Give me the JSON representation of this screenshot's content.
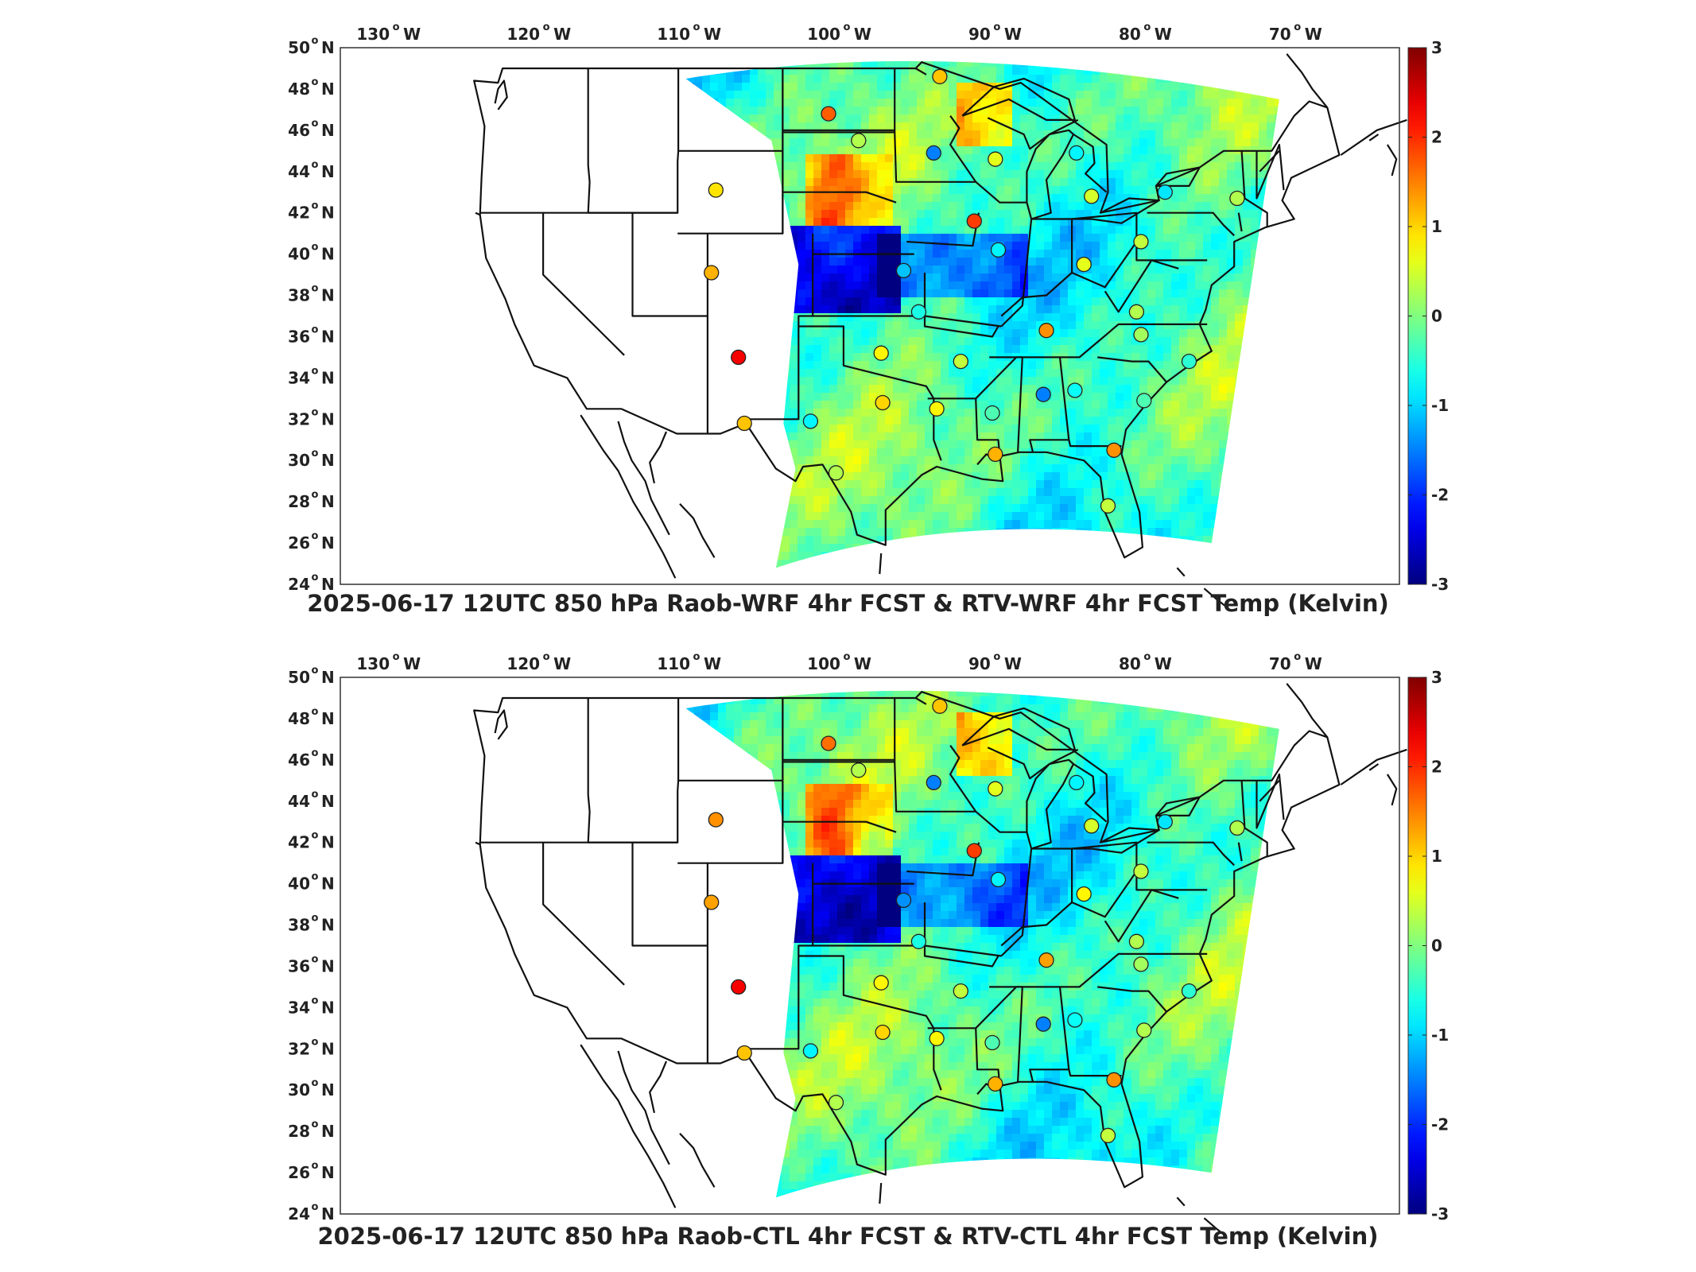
{
  "panels": [
    {
      "id": "top",
      "title": "2025-06-17 12UTC 850 hPa Raob-WRF 4hr FCST & RTV-WRF 4hr FCST Temp (Kelvin)",
      "stations": [
        {
          "lon": -93.6,
          "lat": 48.6,
          "v": 1.1
        },
        {
          "lon": -101.0,
          "lat": 46.8,
          "v": 1.7
        },
        {
          "lon": -99.0,
          "lat": 45.5,
          "v": 0.3
        },
        {
          "lon": -94.0,
          "lat": 44.9,
          "v": -1.5
        },
        {
          "lon": -108.5,
          "lat": 43.1,
          "v": 0.9
        },
        {
          "lon": -89.9,
          "lat": 44.6,
          "v": 0.6
        },
        {
          "lon": -84.5,
          "lat": 44.9,
          "v": -0.8
        },
        {
          "lon": -83.5,
          "lat": 42.8,
          "v": 0.5
        },
        {
          "lon": -78.6,
          "lat": 43.0,
          "v": -0.9
        },
        {
          "lon": -73.8,
          "lat": 42.7,
          "v": 0.3
        },
        {
          "lon": -91.3,
          "lat": 41.6,
          "v": 1.9
        },
        {
          "lon": -89.7,
          "lat": 40.2,
          "v": -0.8
        },
        {
          "lon": -96.0,
          "lat": 39.2,
          "v": -1.1
        },
        {
          "lon": -84.0,
          "lat": 39.5,
          "v": 0.6
        },
        {
          "lon": -80.2,
          "lat": 40.6,
          "v": 0.4
        },
        {
          "lon": -108.8,
          "lat": 39.1,
          "v": 1.2
        },
        {
          "lon": -95.0,
          "lat": 37.2,
          "v": -0.6
        },
        {
          "lon": -80.5,
          "lat": 37.2,
          "v": 0.3
        },
        {
          "lon": -86.5,
          "lat": 36.3,
          "v": 1.4
        },
        {
          "lon": -80.2,
          "lat": 36.1,
          "v": 0.2
        },
        {
          "lon": -97.5,
          "lat": 35.2,
          "v": 0.8
        },
        {
          "lon": -107.0,
          "lat": 35.0,
          "v": 2.3
        },
        {
          "lon": -92.2,
          "lat": 34.8,
          "v": 0.4
        },
        {
          "lon": -77.0,
          "lat": 34.8,
          "v": -0.5
        },
        {
          "lon": -86.7,
          "lat": 33.2,
          "v": -1.5
        },
        {
          "lon": -84.6,
          "lat": 33.4,
          "v": -0.7
        },
        {
          "lon": -97.4,
          "lat": 32.8,
          "v": 1.0
        },
        {
          "lon": -93.8,
          "lat": 32.5,
          "v": 0.8
        },
        {
          "lon": -90.1,
          "lat": 32.3,
          "v": -0.3
        },
        {
          "lon": -80.0,
          "lat": 32.9,
          "v": -0.3
        },
        {
          "lon": -106.6,
          "lat": 31.8,
          "v": 1.1
        },
        {
          "lon": -102.2,
          "lat": 31.9,
          "v": -0.8
        },
        {
          "lon": -89.9,
          "lat": 30.3,
          "v": 1.2
        },
        {
          "lon": -82.0,
          "lat": 30.5,
          "v": 1.4
        },
        {
          "lon": -100.5,
          "lat": 29.4,
          "v": 0.3
        },
        {
          "lon": -82.4,
          "lat": 27.8,
          "v": 0.4
        }
      ]
    },
    {
      "id": "bottom",
      "title": "2025-06-17 12UTC 850 hPa Raob-CTL 4hr FCST & RTV-CTL 4hr FCST Temp (Kelvin)",
      "stations": [
        {
          "lon": -93.6,
          "lat": 48.6,
          "v": 1.1
        },
        {
          "lon": -101.0,
          "lat": 46.8,
          "v": 1.6
        },
        {
          "lon": -99.0,
          "lat": 45.5,
          "v": 0.3
        },
        {
          "lon": -94.0,
          "lat": 44.9,
          "v": -1.5
        },
        {
          "lon": -108.5,
          "lat": 43.1,
          "v": 1.4
        },
        {
          "lon": -89.9,
          "lat": 44.6,
          "v": 0.6
        },
        {
          "lon": -84.5,
          "lat": 44.9,
          "v": -0.8
        },
        {
          "lon": -83.5,
          "lat": 42.8,
          "v": 0.5
        },
        {
          "lon": -78.6,
          "lat": 43.0,
          "v": -0.9
        },
        {
          "lon": -73.8,
          "lat": 42.7,
          "v": 0.3
        },
        {
          "lon": -91.3,
          "lat": 41.6,
          "v": 1.9
        },
        {
          "lon": -89.7,
          "lat": 40.2,
          "v": -0.8
        },
        {
          "lon": -96.0,
          "lat": 39.2,
          "v": -1.4
        },
        {
          "lon": -84.0,
          "lat": 39.5,
          "v": 0.8
        },
        {
          "lon": -80.2,
          "lat": 40.6,
          "v": 0.4
        },
        {
          "lon": -108.8,
          "lat": 39.1,
          "v": 1.3
        },
        {
          "lon": -95.0,
          "lat": 37.2,
          "v": -0.6
        },
        {
          "lon": -80.5,
          "lat": 37.2,
          "v": 0.3
        },
        {
          "lon": -86.5,
          "lat": 36.3,
          "v": 1.3
        },
        {
          "lon": -80.2,
          "lat": 36.1,
          "v": 0.2
        },
        {
          "lon": -97.5,
          "lat": 35.2,
          "v": 0.8
        },
        {
          "lon": -107.0,
          "lat": 35.0,
          "v": 2.3
        },
        {
          "lon": -92.2,
          "lat": 34.8,
          "v": 0.4
        },
        {
          "lon": -77.0,
          "lat": 34.8,
          "v": -0.5
        },
        {
          "lon": -86.7,
          "lat": 33.2,
          "v": -1.5
        },
        {
          "lon": -84.6,
          "lat": 33.4,
          "v": -0.7
        },
        {
          "lon": -97.4,
          "lat": 32.8,
          "v": 1.0
        },
        {
          "lon": -93.8,
          "lat": 32.5,
          "v": 0.8
        },
        {
          "lon": -90.1,
          "lat": 32.3,
          "v": -0.3
        },
        {
          "lon": -80.0,
          "lat": 32.9,
          "v": 0.3
        },
        {
          "lon": -106.6,
          "lat": 31.8,
          "v": 1.1
        },
        {
          "lon": -102.2,
          "lat": 31.9,
          "v": -0.8
        },
        {
          "lon": -89.9,
          "lat": 30.3,
          "v": 1.2
        },
        {
          "lon": -82.0,
          "lat": 30.5,
          "v": 1.4
        },
        {
          "lon": -100.5,
          "lat": 29.4,
          "v": 0.3
        },
        {
          "lon": -82.4,
          "lat": 27.8,
          "v": 0.4
        }
      ]
    }
  ],
  "lon_labels": [
    "130",
    "120",
    "110",
    "100",
    "90",
    "80",
    "70"
  ],
  "lon_values": [
    -130,
    -120,
    -110,
    -100,
    -90,
    -80,
    -70
  ],
  "lat_labels": [
    "50",
    "48",
    "46",
    "44",
    "42",
    "40",
    "38",
    "36",
    "34",
    "32",
    "30",
    "28",
    "26",
    "24"
  ],
  "lat_values": [
    50,
    48,
    46,
    44,
    42,
    40,
    38,
    36,
    34,
    32,
    30,
    28,
    26,
    24
  ],
  "lon_suffix": "W",
  "lat_suffix": "N",
  "colorbar": {
    "labels": [
      "3",
      "2",
      "1",
      "0",
      "-1",
      "-2",
      "-3"
    ],
    "min": -3,
    "max": 3,
    "colormap": "jet"
  },
  "colors": {
    "border": "#111111",
    "frame": "#333333",
    "text": "#222222"
  }
}
